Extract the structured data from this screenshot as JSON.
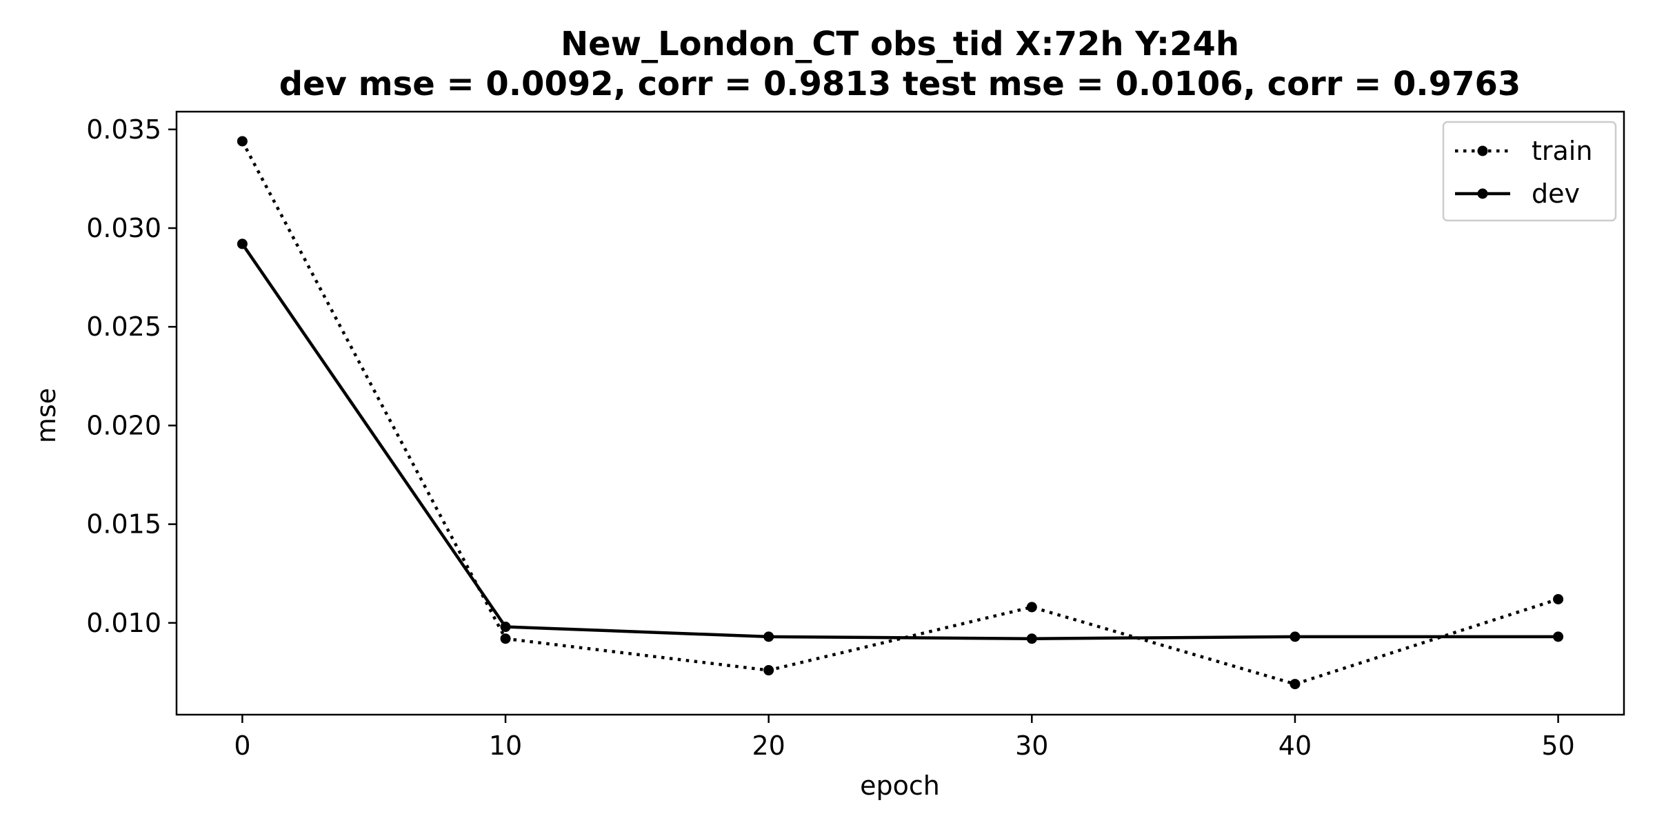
{
  "chart_data": {
    "type": "line",
    "title": "New_London_CT   obs_tid   X:72h   Y:24h",
    "subtitle": "dev mse = 0.0092, corr = 0.9813   test mse = 0.0106, corr = 0.9763",
    "xlabel": "epoch",
    "ylabel": "mse",
    "x": [
      0,
      10,
      20,
      30,
      40,
      50
    ],
    "xlim": [
      -2.5,
      52.5
    ],
    "ylim": [
      0.00535,
      0.0359
    ],
    "xticks": [
      0,
      10,
      20,
      30,
      40,
      50
    ],
    "xtick_labels": [
      "0",
      "10",
      "20",
      "30",
      "40",
      "50"
    ],
    "yticks": [
      0.01,
      0.015,
      0.02,
      0.025,
      0.03,
      0.035
    ],
    "ytick_labels": [
      "0.010",
      "0.015",
      "0.020",
      "0.025",
      "0.030",
      "0.035"
    ],
    "grid": false,
    "legend_position": "top-right",
    "series": [
      {
        "name": "train",
        "style": "dotted",
        "color": "#000000",
        "values": [
          0.0344,
          0.0092,
          0.0076,
          0.0108,
          0.0069,
          0.0112
        ]
      },
      {
        "name": "dev",
        "style": "solid",
        "color": "#000000",
        "values": [
          0.0292,
          0.0098,
          0.0093,
          0.0092,
          0.0093,
          0.0093
        ]
      }
    ]
  }
}
